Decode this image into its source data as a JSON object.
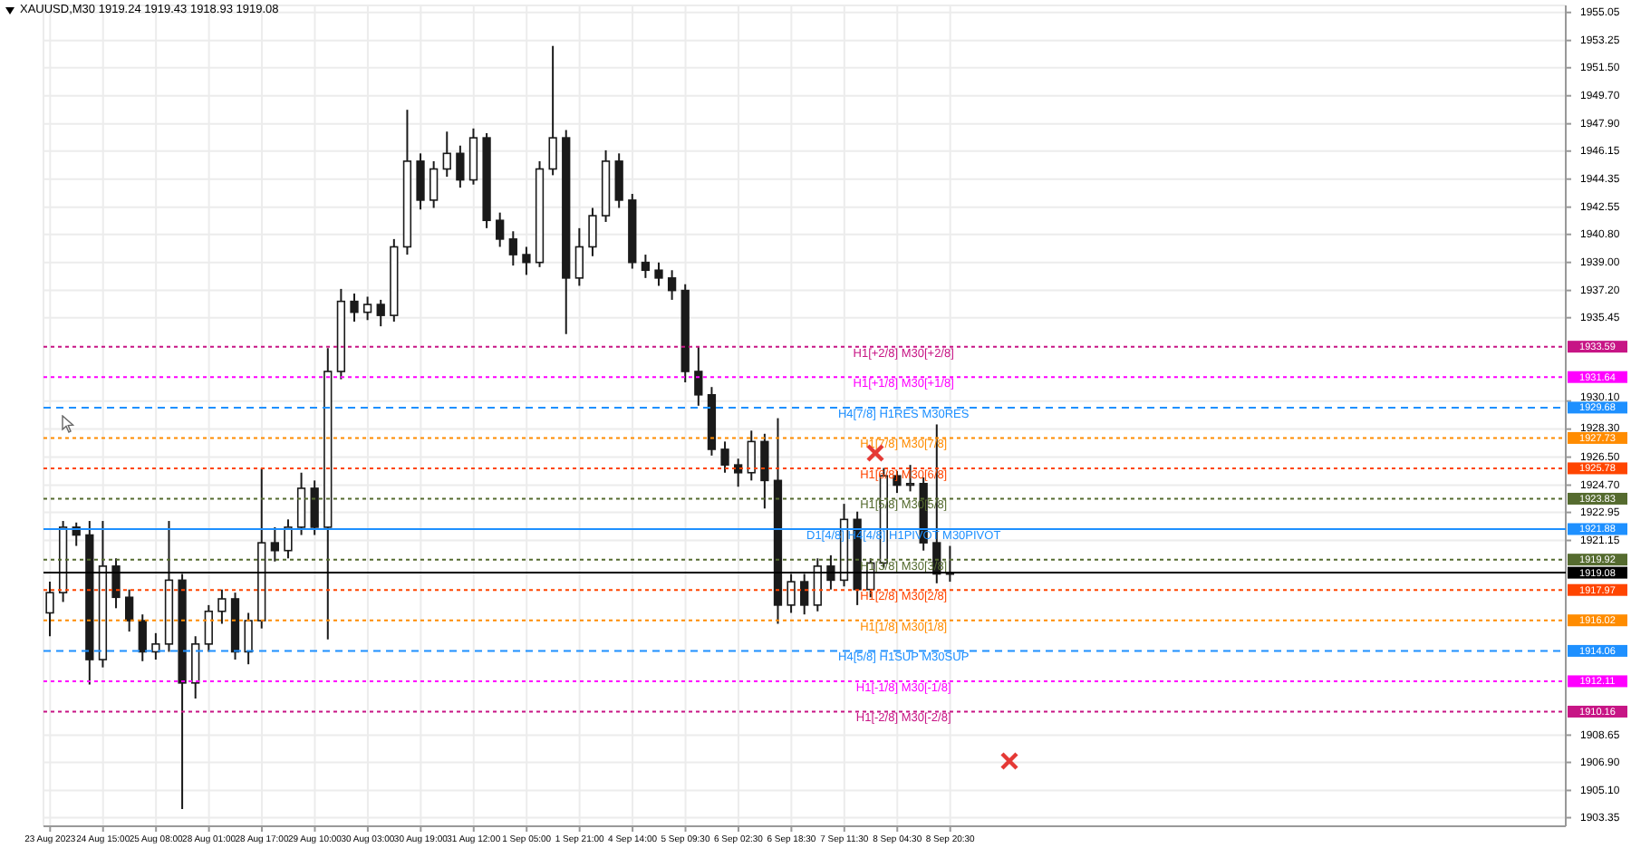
{
  "chart_data": {
    "type": "candlestick",
    "title": "XAUUSD,M30  1919.24 1919.43 1918.93 1919.08",
    "color": "#1a1a1a",
    "categories": [
      "23 Aug 2023",
      null,
      null,
      null,
      "24 Aug 15:00",
      null,
      null,
      null,
      "25 Aug 08:00",
      null,
      null,
      null,
      "28 Aug 01:00",
      null,
      null,
      null,
      "28 Aug 17:00",
      null,
      null,
      null,
      "29 Aug 10:00",
      null,
      null,
      null,
      "30 Aug 03:00",
      null,
      null,
      null,
      "30 Aug 19:00",
      null,
      null,
      null,
      "31 Aug 12:00",
      null,
      null,
      null,
      "1 Sep 05:00",
      null,
      null,
      null,
      "1 Sep 21:00",
      null,
      null,
      null,
      "4 Sep 14:00",
      null,
      null,
      null,
      "5 Sep 09:30",
      null,
      null,
      null,
      "6 Sep 02:30",
      null,
      null,
      null,
      "6 Sep 18:30",
      null,
      null,
      null,
      "7 Sep 11:30",
      null,
      null,
      null,
      "8 Sep 04:30",
      null,
      null,
      null,
      "8 Sep 20:30",
      null,
      null,
      null,
      null,
      null,
      null,
      null,
      null,
      null,
      null,
      null,
      null,
      null,
      null,
      null,
      null,
      null,
      null,
      null,
      null,
      null,
      null,
      null,
      null,
      null,
      null,
      null,
      null,
      null,
      null,
      null,
      null,
      null,
      null,
      null,
      null,
      null,
      null,
      null,
      null,
      null,
      null,
      null,
      null,
      null,
      null
    ],
    "ohlc": [
      [
        1916.5,
        1918.5,
        1915.0,
        1917.8
      ],
      [
        1917.8,
        1922.4,
        1917.2,
        1922.0
      ],
      [
        1922.0,
        1922.3,
        1920.8,
        1921.5
      ],
      [
        1921.5,
        1922.4,
        1911.9,
        1913.5
      ],
      [
        1913.5,
        1922.4,
        1913.0,
        1919.5
      ],
      [
        1919.5,
        1920.0,
        1916.8,
        1917.5
      ],
      [
        1917.5,
        1918.0,
        1915.3,
        1916.0
      ],
      [
        1916.0,
        1916.4,
        1913.4,
        1914.0
      ],
      [
        1914.0,
        1915.2,
        1913.5,
        1914.5
      ],
      [
        1914.5,
        1922.4,
        1914.0,
        1918.6
      ],
      [
        1918.6,
        1919.0,
        1903.9,
        1912.0
      ],
      [
        1912.0,
        1915.0,
        1911.0,
        1914.5
      ],
      [
        1914.5,
        1917.0,
        1914.0,
        1916.6
      ],
      [
        1916.6,
        1918.0,
        1915.8,
        1917.4
      ],
      [
        1917.4,
        1917.8,
        1913.5,
        1914.0
      ],
      [
        1914.0,
        1916.5,
        1913.2,
        1916.0
      ],
      [
        1916.0,
        1925.8,
        1915.5,
        1921.0
      ],
      [
        1921.0,
        1922.0,
        1919.8,
        1920.5
      ],
      [
        1920.5,
        1922.5,
        1920.0,
        1922.0
      ],
      [
        1922.0,
        1925.5,
        1921.5,
        1924.5
      ],
      [
        1924.5,
        1925.0,
        1921.5,
        1922.0
      ],
      [
        1922.0,
        1933.5,
        1914.8,
        1932.0
      ],
      [
        1932.0,
        1937.3,
        1931.5,
        1936.5
      ],
      [
        1936.5,
        1937.0,
        1935.2,
        1935.8
      ],
      [
        1935.8,
        1936.8,
        1935.3,
        1936.3
      ],
      [
        1936.3,
        1936.6,
        1934.9,
        1935.6
      ],
      [
        1935.6,
        1940.5,
        1935.2,
        1940.0
      ],
      [
        1940.0,
        1948.8,
        1939.5,
        1945.5
      ],
      [
        1945.5,
        1946.0,
        1942.4,
        1943.0
      ],
      [
        1943.0,
        1945.5,
        1942.5,
        1945.0
      ],
      [
        1945.0,
        1947.4,
        1944.5,
        1946.0
      ],
      [
        1946.0,
        1946.5,
        1943.8,
        1944.3
      ],
      [
        1944.3,
        1947.6,
        1944.0,
        1947.0
      ],
      [
        1947.0,
        1947.3,
        1941.2,
        1941.7
      ],
      [
        1941.7,
        1942.2,
        1940.0,
        1940.5
      ],
      [
        1940.5,
        1941.0,
        1938.8,
        1939.5
      ],
      [
        1939.5,
        1940.0,
        1938.2,
        1939.0
      ],
      [
        1939.0,
        1945.5,
        1938.7,
        1945.0
      ],
      [
        1945.0,
        1952.9,
        1944.6,
        1947.0
      ],
      [
        1947.0,
        1947.5,
        1934.4,
        1938.0
      ],
      [
        1938.0,
        1941.2,
        1937.5,
        1940.0
      ],
      [
        1940.0,
        1942.5,
        1939.4,
        1942.0
      ],
      [
        1942.0,
        1946.2,
        1941.6,
        1945.5
      ],
      [
        1945.5,
        1946.0,
        1942.5,
        1943.0
      ],
      [
        1943.0,
        1943.4,
        1938.6,
        1939.0
      ],
      [
        1939.0,
        1939.5,
        1938.0,
        1938.5
      ],
      [
        1938.5,
        1939.0,
        1937.5,
        1938.0
      ],
      [
        1938.0,
        1938.5,
        1936.6,
        1937.2
      ],
      [
        1937.2,
        1937.6,
        1931.3,
        1932.0
      ],
      [
        1932.0,
        1933.6,
        1929.8,
        1930.5
      ],
      [
        1930.5,
        1931.0,
        1926.6,
        1927.0
      ],
      [
        1927.0,
        1927.5,
        1925.5,
        1926.0
      ],
      [
        1926.0,
        1926.4,
        1924.6,
        1925.5
      ],
      [
        1925.5,
        1928.2,
        1925.0,
        1927.5
      ],
      [
        1927.5,
        1928.0,
        1923.2,
        1925.0
      ],
      [
        1925.0,
        1929.0,
        1915.8,
        1917.0
      ],
      [
        1917.0,
        1919.0,
        1916.5,
        1918.5
      ],
      [
        1918.5,
        1919.0,
        1916.4,
        1917.0
      ],
      [
        1917.0,
        1920.0,
        1916.6,
        1919.5
      ],
      [
        1919.5,
        1920.2,
        1918.0,
        1918.6
      ],
      [
        1918.6,
        1923.5,
        1918.2,
        1922.5
      ],
      [
        1922.5,
        1923.0,
        1917.0,
        1918.0
      ],
      [
        1918.0,
        1920.0,
        1917.5,
        1919.7
      ],
      [
        1919.7,
        1925.8,
        1919.4,
        1925.3
      ],
      [
        1925.3,
        1925.6,
        1924.2,
        1924.7
      ],
      [
        1924.7,
        1926.0,
        1924.3,
        1924.8
      ],
      [
        1924.8,
        1925.2,
        1920.5,
        1921.0
      ],
      [
        1921.0,
        1928.6,
        1918.4,
        1919.0
      ],
      [
        1919.0,
        1920.8,
        1918.5,
        1919.08
      ],
      null,
      null,
      null,
      null,
      null,
      null,
      null,
      null,
      null,
      null,
      null,
      null,
      null,
      null,
      null,
      null,
      null,
      null,
      null,
      null,
      null,
      null,
      null,
      null,
      null,
      null,
      null,
      null,
      null,
      null,
      null,
      null,
      null,
      null,
      null,
      null,
      null,
      null,
      null,
      null,
      null,
      null,
      null,
      null,
      null,
      null
    ],
    "ylim": [
      1902.8,
      1955.5
    ],
    "yticks": [
      {
        "value": 1955.05,
        "label": "1955.05"
      },
      {
        "value": 1953.25,
        "label": "1953.25"
      },
      {
        "value": 1951.5,
        "label": "1951.50"
      },
      {
        "value": 1949.7,
        "label": "1949.70"
      },
      {
        "value": 1947.9,
        "label": "1947.90"
      },
      {
        "value": 1946.15,
        "label": "1946.15"
      },
      {
        "value": 1944.35,
        "label": "1944.35"
      },
      {
        "value": 1942.55,
        "label": "1942.55"
      },
      {
        "value": 1940.8,
        "label": "1940.80"
      },
      {
        "value": 1939.0,
        "label": "1939.00"
      },
      {
        "value": 1937.2,
        "label": "1937.20"
      },
      {
        "value": 1935.45,
        "label": "1935.45"
      },
      {
        "value": 1930.1,
        "label": "1930.10"
      },
      {
        "value": 1928.3,
        "label": "1928.30"
      },
      {
        "value": 1926.5,
        "label": "1926.50"
      },
      {
        "value": 1924.7,
        "label": "1924.70"
      },
      {
        "value": 1922.95,
        "label": "1922.95"
      },
      {
        "value": 1921.15,
        "label": "1921.15"
      },
      {
        "value": 1908.65,
        "label": "1908.65"
      },
      {
        "value": 1906.9,
        "label": "1906.90"
      },
      {
        "value": 1905.1,
        "label": "1905.10"
      },
      {
        "value": 1903.35,
        "label": "1903.35"
      }
    ],
    "grid": true,
    "annotations": [
      "1933.59",
      "1931.64",
      "1929.68",
      "1927.73",
      "1925.78",
      "1923.83",
      "1921.88",
      "1919.92",
      "1919.08",
      "1917.97",
      "1916.02",
      "1914.06",
      "1912.11",
      "1910.16"
    ],
    "ref_lines": [
      {
        "axis": "y",
        "value": 1933.59,
        "label": "H1[+2/8] M30[+2/8]",
        "color": "#c71585",
        "line_style": "dotted"
      },
      {
        "axis": "y",
        "value": 1931.64,
        "label": "H1[+1/8] M30[+1/8]",
        "color": "#ff00ff",
        "line_style": "dotted"
      },
      {
        "axis": "y",
        "value": 1929.68,
        "label": "H4[7/8] H1RES M30RES",
        "color": "#1e90ff",
        "line_style": "dashed"
      },
      {
        "axis": "y",
        "value": 1927.73,
        "label": "H1[7/8] M30[7/8]",
        "color": "#ff8c00",
        "line_style": "dotted"
      },
      {
        "axis": "y",
        "value": 1925.78,
        "label": "H1[6/8] M30[6/8]",
        "color": "#ff4500",
        "line_style": "dotted"
      },
      {
        "axis": "y",
        "value": 1923.83,
        "label": "H1[5/8] M30[5/8]",
        "color": "#556b2f",
        "line_style": "dotted"
      },
      {
        "axis": "y",
        "value": 1921.88,
        "label": "D1[4/8] H4[4/8] H1PIVOT M30PIVOT",
        "color": "#1e90ff",
        "line_style": "solid"
      },
      {
        "axis": "y",
        "value": 1919.92,
        "label": "H1[3/8] M30[3/8]",
        "color": "#556b2f",
        "line_style": "dotted"
      },
      {
        "axis": "y",
        "value": 1919.08,
        "label": null,
        "color": "#000000",
        "line_style": "solid"
      },
      {
        "axis": "y",
        "value": 1917.97,
        "label": "H1[2/8] M30[2/8]",
        "color": "#ff4500",
        "line_style": "dotted"
      },
      {
        "axis": "y",
        "value": 1916.02,
        "label": "H1[1/8] M30[1/8]",
        "color": "#ff8c00",
        "line_style": "dotted"
      },
      {
        "axis": "y",
        "value": 1914.06,
        "label": "H4[5/8] H1SUP M30SUP",
        "color": "#1e90ff",
        "line_style": "dashed"
      },
      {
        "axis": "y",
        "value": 1912.11,
        "label": "H1[-1/8] M30[-1/8]",
        "color": "#ff00ff",
        "line_style": "dotted"
      },
      {
        "axis": "y",
        "value": 1910.16,
        "label": "H1[-2/8] M30[-2/8]",
        "color": "#c71585",
        "line_style": "dotted"
      }
    ]
  }
}
